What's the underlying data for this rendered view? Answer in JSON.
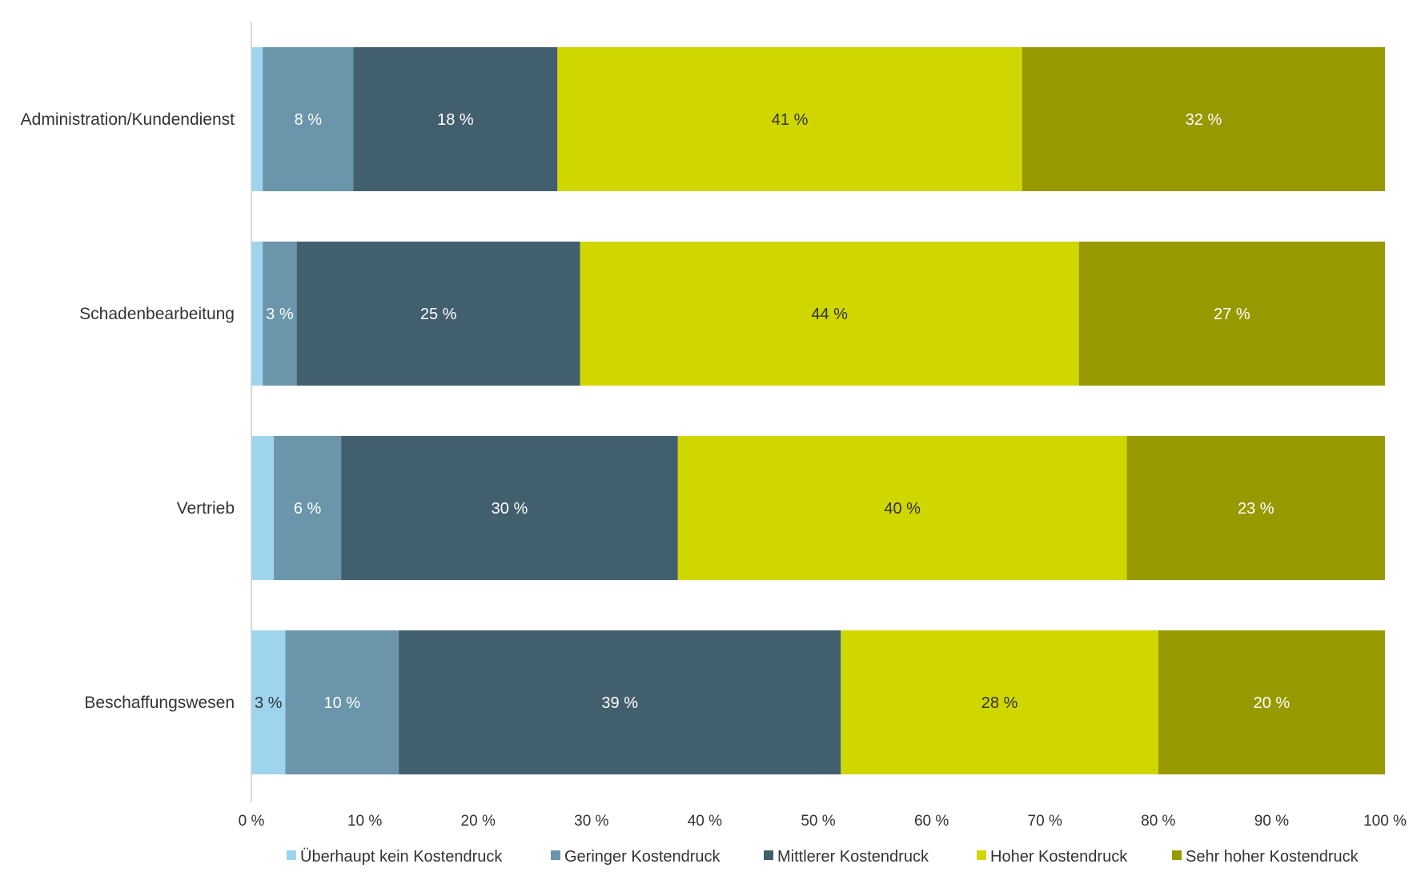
{
  "chart_data": {
    "type": "bar",
    "orientation": "horizontal",
    "stacked": true,
    "categories": [
      "Administration/Kundendienst",
      "Schadenbearbeitung",
      "Vertrieb",
      "Beschaffungswesen"
    ],
    "series": [
      {
        "name": "Überhaupt kein Kostendruck",
        "color": "#9fd4ef",
        "values": [
          1,
          1,
          2,
          3
        ],
        "labels": [
          "",
          "",
          "",
          "3 %"
        ],
        "label_color": "#333333"
      },
      {
        "name": "Geringer Kostendruck",
        "color": "#6a95aa",
        "values": [
          8,
          3,
          6,
          10
        ],
        "labels": [
          "8 %",
          "3 %",
          "6 %",
          "10 %"
        ],
        "label_color": "#ffffff"
      },
      {
        "name": "Mittlerer Kostendruck",
        "color": "#425f6e",
        "values": [
          18,
          25,
          30,
          39
        ],
        "labels": [
          "18 %",
          "25 %",
          "30 %",
          "39 %"
        ],
        "label_color": "#ffffff"
      },
      {
        "name": "Hoher Kostendruck",
        "color": "#d0d600",
        "values": [
          41,
          44,
          40,
          28
        ],
        "labels": [
          "41 %",
          "44 %",
          "40 %",
          "28 %"
        ],
        "label_color": "#333333"
      },
      {
        "name": "Sehr hoher Kostendruck",
        "color": "#969a00",
        "values": [
          32,
          27,
          23,
          20
        ],
        "labels": [
          "32 %",
          "27 %",
          "23 %",
          "20 %"
        ],
        "label_color": "#ffffff"
      }
    ],
    "xlim": [
      0,
      100
    ],
    "xticks": [
      "0 %",
      "10 %",
      "20 %",
      "30 %",
      "40 %",
      "50 %",
      "60 %",
      "70 %",
      "80 %",
      "90 %",
      "100 %"
    ],
    "grid": false,
    "legend_position": "bottom"
  }
}
